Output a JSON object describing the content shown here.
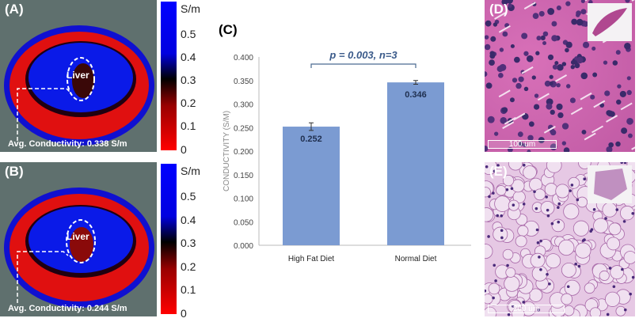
{
  "panel_a": {
    "label": "(A)",
    "organ_label": "Liver",
    "avg_text": "Avg. Conductivity: 0.338 S/m"
  },
  "panel_b": {
    "label": "(B)",
    "organ_label": "Liver",
    "avg_text": "Avg. Conductivity: 0.244 S/m"
  },
  "colorbar": {
    "unit": "S/m",
    "ticks": [
      "0.5",
      "0.4",
      "0.3",
      "0.2",
      "0.1",
      "0"
    ]
  },
  "panel_d": {
    "label": "(D)",
    "scale": "100 um"
  },
  "panel_e": {
    "label": "(E)",
    "scale": "200 um"
  },
  "chart_data": {
    "type": "bar",
    "panel_label": "(C)",
    "categories": [
      "High Fat Diet",
      "Normal Diet"
    ],
    "values": [
      0.252,
      0.346
    ],
    "value_labels": [
      "0.252",
      "0.346"
    ],
    "errors": [
      0.008,
      0.004
    ],
    "ylabel": "CONDUCTIVITY (S/M)",
    "xlabel": "",
    "ylim": [
      0,
      0.4
    ],
    "yticks": [
      "0.000",
      "0.050",
      "0.100",
      "0.150",
      "0.200",
      "0.250",
      "0.300",
      "0.350",
      "0.400"
    ],
    "annotation": "p = 0.003, n=3",
    "bar_color": "#7b9bd2",
    "grid": false
  }
}
